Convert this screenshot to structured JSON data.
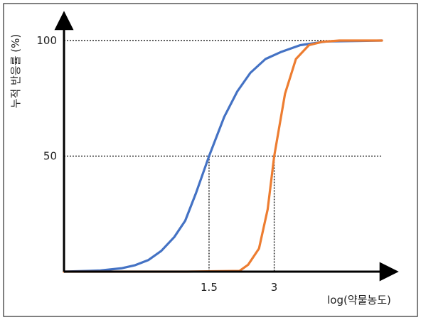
{
  "chart_data": {
    "type": "line",
    "xlabel": "log(약물농도)",
    "ylabel": "누적 반응률 (%)",
    "y_ticks": [
      {
        "value": 50,
        "label": "50"
      },
      {
        "value": 100,
        "label": "100"
      }
    ],
    "x_ticks": [
      {
        "value": 1.5,
        "label": "1.5"
      },
      {
        "value": 3,
        "label": "3"
      }
    ],
    "xlim": [
      -1.84,
      5.48
    ],
    "ylim": [
      0,
      100
    ],
    "reference_lines": [
      {
        "x": 1.5,
        "y": 50
      },
      {
        "x": 3,
        "y": 50
      }
    ],
    "grid": false,
    "series": [
      {
        "color": "#4472C4",
        "x": [
          -1.84,
          -1.0,
          -0.5,
          -0.2,
          0.1,
          0.4,
          0.7,
          0.95,
          1.2,
          1.5,
          1.85,
          2.15,
          2.45,
          2.8,
          3.15,
          3.6,
          4.2,
          5.48
        ],
        "y": [
          0,
          0.5,
          1.5,
          2.8,
          5,
          9,
          15,
          22,
          34,
          50,
          67,
          78,
          86,
          92,
          95,
          98,
          99.6,
          100
        ]
      },
      {
        "color": "#ED7D31",
        "x": [
          -1.84,
          1.0,
          2.2,
          2.4,
          2.65,
          2.85,
          3.0,
          3.25,
          3.5,
          3.8,
          4.1,
          4.5,
          5.48
        ],
        "y": [
          0,
          0,
          0.3,
          3,
          10,
          27,
          50,
          77,
          92,
          98,
          99.4,
          100,
          100
        ]
      }
    ]
  }
}
